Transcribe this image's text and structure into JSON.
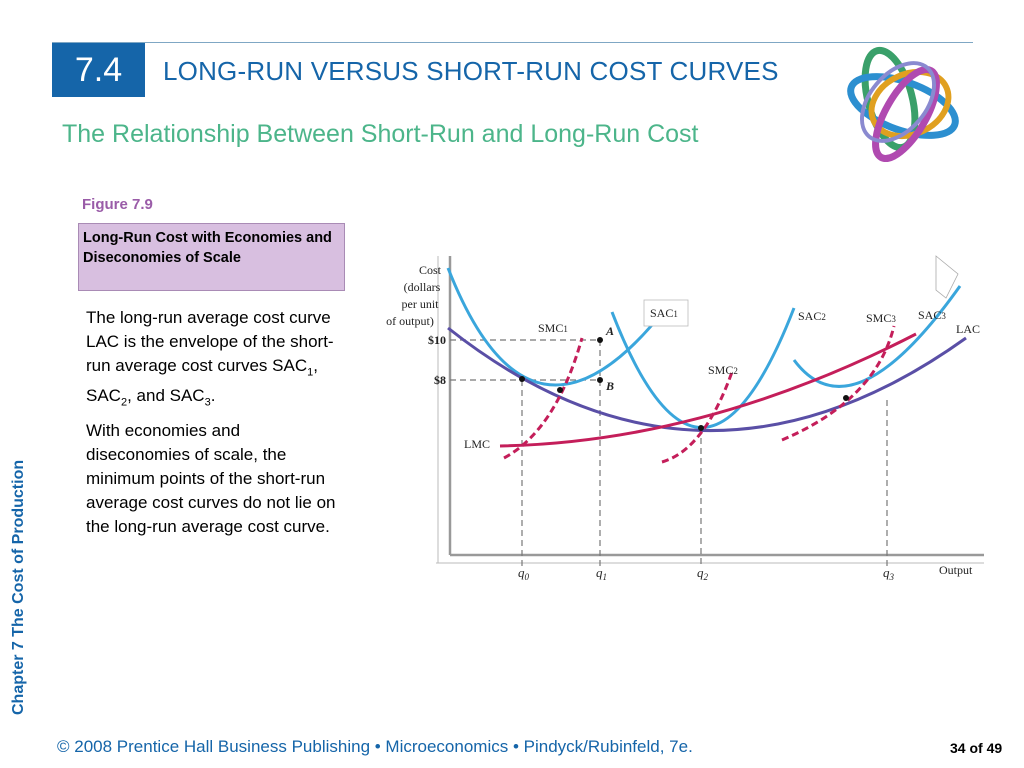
{
  "header": {
    "section_number": "7.4",
    "title": "LONG-RUN VERSUS SHORT-RUN COST CURVES",
    "subtitle": "The Relationship Between Short-Run and Long-Run Cost"
  },
  "figure": {
    "label": "Figure 7.9",
    "caption": "Long-Run Cost with Economies and Diseconomies of Scale"
  },
  "body": {
    "p1_main": "The long-run average cost curve LAC is the envelope of the short-run average cost curves SAC",
    "p1_sub1": "1",
    "p1_mid1": ", SAC",
    "p1_sub2": "2",
    "p1_mid2": ", and SAC",
    "p1_sub3": "3",
    "p1_end": ".",
    "p2": "With economies and diseconomies of scale, the minimum points of the short-run average cost curves do not lie on the long-run average cost curve."
  },
  "sidebar": {
    "chapter": "Chapter 7  The Cost of Production"
  },
  "footer": {
    "text": "© 2008 Prentice Hall Business Publishing  •  Microeconomics  •  Pindyck/Rubinfeld, 7e.",
    "page": "34 of 49"
  },
  "colors": {
    "brand_blue": "#1565a9",
    "subtitle_green": "#4cb58a",
    "sac_blue": "#3aa6dc",
    "lac_purple": "#5a4fa6",
    "mc_crimson": "#c41e5a",
    "caption_purple": "#d8bfe0"
  },
  "chart_data": {
    "type": "line",
    "ylabel": "Cost (dollars per unit of output)",
    "xlabel": "Output",
    "y_ticks": [
      "$10",
      "$8"
    ],
    "x_ticks": [
      "q0",
      "q1",
      "q2",
      "q3"
    ],
    "points": [
      "A",
      "B"
    ],
    "grid": false,
    "series": [
      {
        "name": "SAC1",
        "style": "solid",
        "color": "sac_blue"
      },
      {
        "name": "SAC2",
        "style": "solid",
        "color": "sac_blue"
      },
      {
        "name": "SAC3",
        "style": "solid",
        "color": "sac_blue"
      },
      {
        "name": "LAC",
        "style": "solid",
        "color": "lac_purple"
      },
      {
        "name": "LMC",
        "style": "solid",
        "color": "mc_crimson"
      },
      {
        "name": "SMC1",
        "style": "dashed",
        "color": "mc_crimson"
      },
      {
        "name": "SMC2",
        "style": "dashed",
        "color": "mc_crimson"
      },
      {
        "name": "SMC3",
        "style": "dashed",
        "color": "mc_crimson"
      }
    ],
    "labels": {
      "ylabel_lines": [
        "Cost",
        "(dollars",
        "per unit",
        "of output)"
      ],
      "y10": "$10",
      "y8": "$8",
      "x_output": "Output",
      "q": "q",
      "q0_sub": "0",
      "q1_sub": "1",
      "q2_sub": "2",
      "q3_sub": "3",
      "sac": "SAC",
      "smc": "SMC",
      "s1": "1",
      "s2": "2",
      "s3": "3",
      "lac": "LAC",
      "lmc": "LMC",
      "pointA": "A",
      "pointB": "B"
    }
  }
}
